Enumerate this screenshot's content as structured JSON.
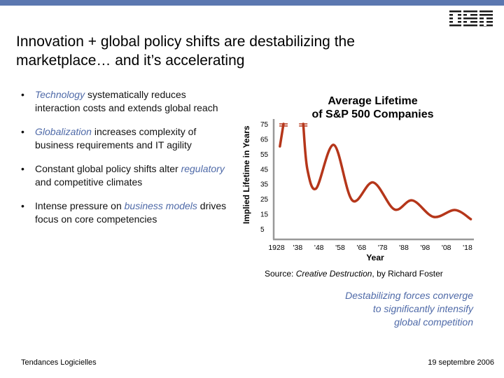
{
  "slide": {
    "title": "Innovation + global policy shifts are destabilizing the marketplace… and it’s accelerating",
    "logo_text": "IBM",
    "bullets": [
      {
        "highlight": "Technology",
        "pre": "",
        "post": " systematically reduces interaction costs and extends global reach"
      },
      {
        "highlight": "Globalization",
        "pre": "",
        "post": " increases complexity of business requirements and IT agility"
      },
      {
        "pre": "Constant global policy shifts alter ",
        "highlight": "regulatory",
        "post": " and competitive climates"
      },
      {
        "pre": "Intense pressure on ",
        "highlight": "business models",
        "post": " drives focus on core competencies"
      }
    ],
    "source_prefix": "Source: ",
    "source_title": "Creative Destruction",
    "source_suffix": ", by Richard Foster",
    "callout": [
      "Destabilizing forces converge",
      "to significantly intensify",
      "global competition"
    ],
    "footer_left": "Tendances Logicielles",
    "footer_right": "19 septembre 2006",
    "colors": {
      "top_bar": "#5b77b0",
      "highlight": "#4f6aa8",
      "line": "#b5361a"
    }
  },
  "chart_data": {
    "type": "line",
    "title": "Average Lifetime of S&P 500 Companies",
    "title_lines": [
      "Average Lifetime",
      "of S&P 500 Companies"
    ],
    "xlabel": "Year",
    "ylabel": "Implied Lifetime in Years",
    "x_ticks": [
      "1928",
      "'38",
      "'48",
      "'58",
      "'68",
      "'78",
      "'88",
      "'98",
      "'08",
      "'18"
    ],
    "y_ticks": [
      "75",
      "65",
      "55",
      "45",
      "35",
      "25",
      "15",
      "5"
    ],
    "xlim": [
      1928,
      2018
    ],
    "ylim": [
      5,
      75
    ],
    "grid": false,
    "series": [
      {
        "segments": [
          [
            [
              1929.6,
              60
            ],
            [
              1931.3,
              75
            ]
          ],
          [
            [
              1940.6,
              75
            ],
            [
              1942.5,
              45
            ],
            [
              1946.7,
              32
            ],
            [
              1955,
              61
            ],
            [
              1963.7,
              24
            ],
            [
              1973.5,
              36
            ],
            [
              1983.5,
              18
            ],
            [
              1992,
              24
            ],
            [
              2002,
              13
            ],
            [
              2012,
              17.6
            ],
            [
              2019.5,
              11.5
            ]
          ]
        ],
        "capped_at_top": [
          1931.3,
          1940.6
        ]
      }
    ]
  }
}
